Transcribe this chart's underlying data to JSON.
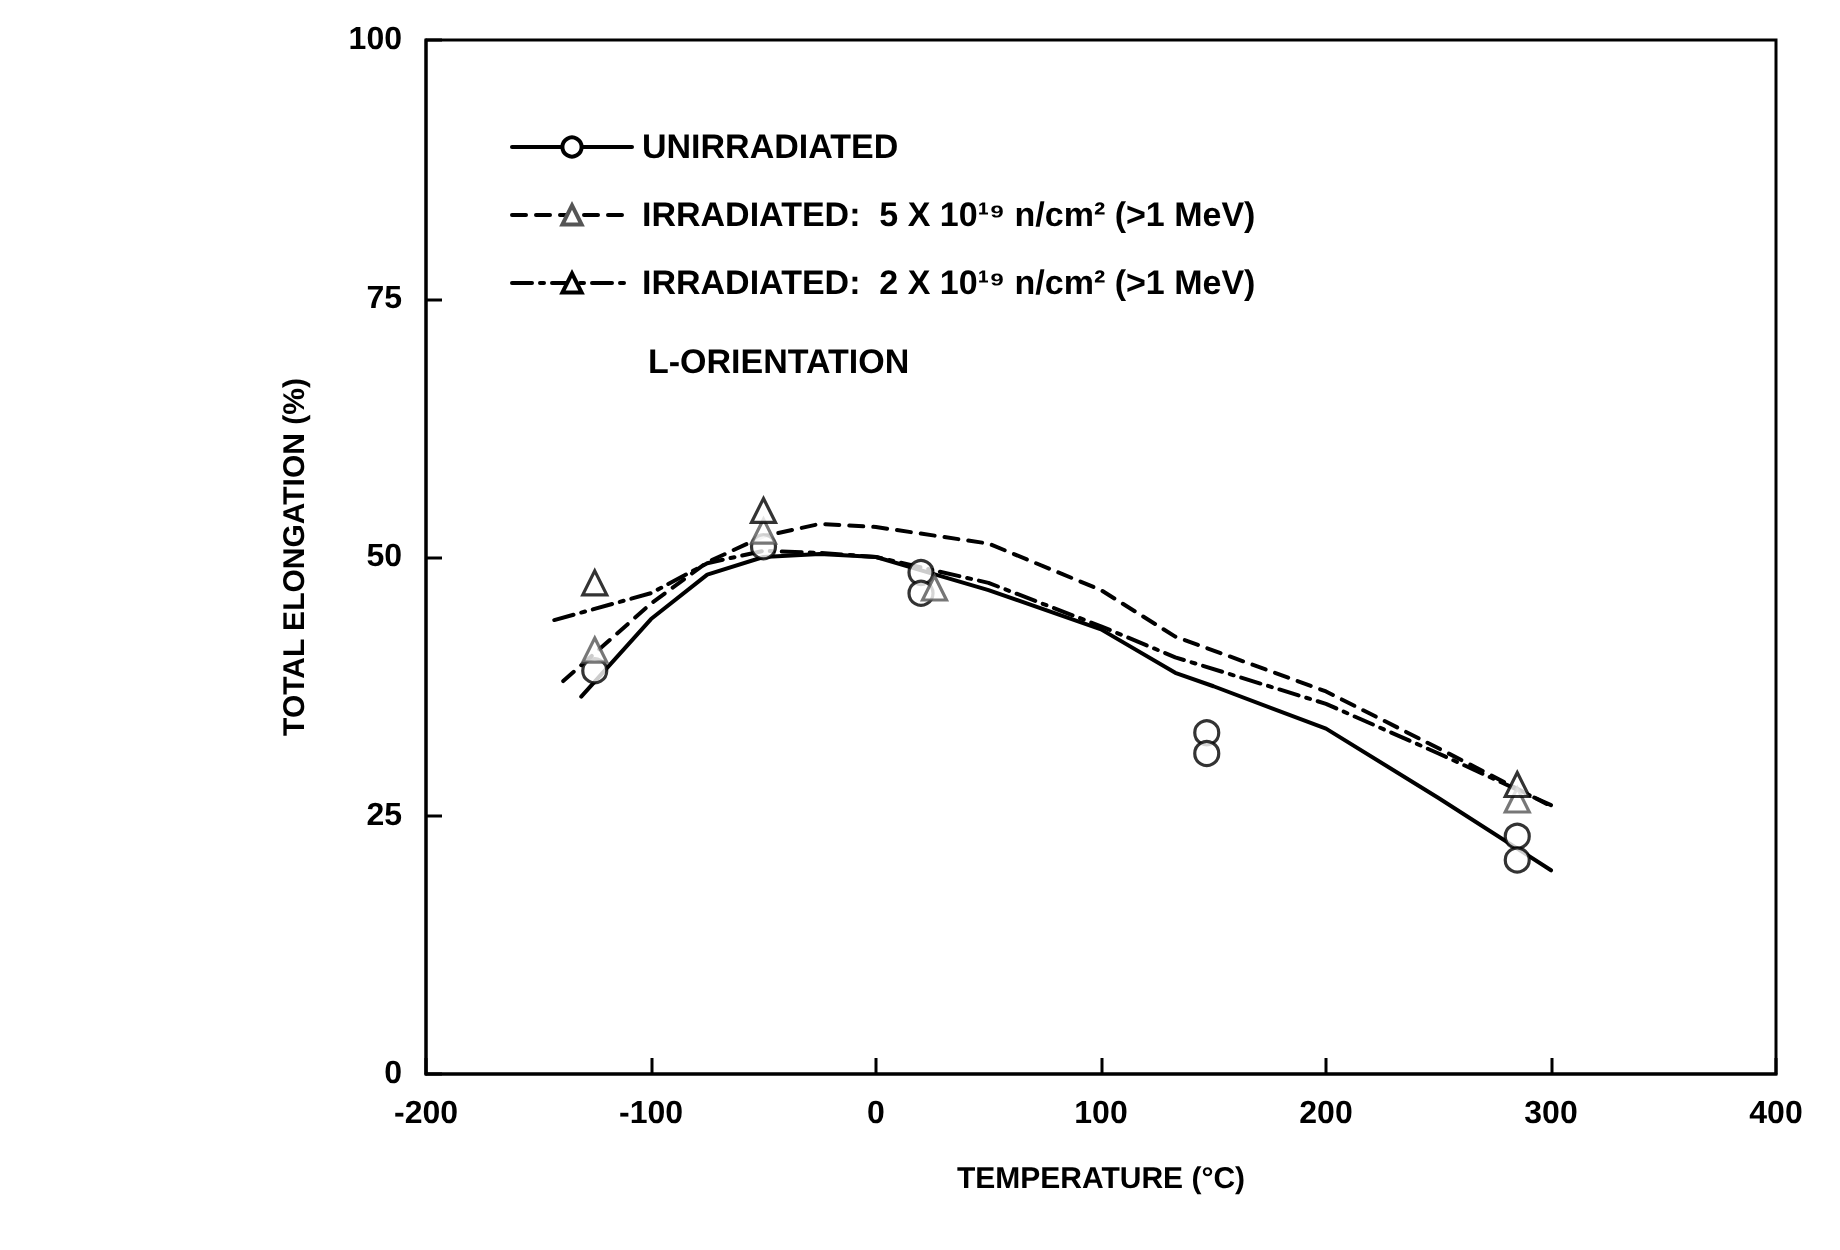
{
  "chart_data": {
    "type": "scatter",
    "xlabel": "TEMPERATURE (°C)",
    "ylabel": "TOTAL ELONGATION (%)",
    "xlim": [
      -200,
      400
    ],
    "xticks": [
      -200,
      -100,
      0,
      100,
      200,
      300,
      400
    ],
    "ylim": [
      0,
      100
    ],
    "yticks": [
      0,
      25,
      50,
      75,
      100
    ],
    "grid": false,
    "legend": "top left",
    "annotations": [
      "L-ORIENTATION"
    ],
    "series": [
      {
        "type": "scatter",
        "color": "#000000",
        "marker": "circle",
        "x": [
          -125,
          -50,
          20,
          20,
          147,
          147,
          285,
          285
        ],
        "values": [
          39,
          51,
          48.5,
          46.5,
          33,
          31,
          23,
          20.7
        ]
      },
      {
        "type": "scatter",
        "color": "#555555",
        "marker": "triangle",
        "x": [
          -125,
          -50,
          26,
          285
        ],
        "values": [
          41,
          52.5,
          47,
          26.5
        ]
      },
      {
        "type": "scatter",
        "color": "#000000",
        "marker": "triangle",
        "x": [
          -125,
          -50,
          285
        ],
        "values": [
          47.5,
          54.5,
          28
        ]
      },
      {
        "type": "line",
        "name": "UNIRRADIATED",
        "color": "#000000",
        "line_style": "solid",
        "marker": "none",
        "x": [
          -131,
          -100,
          -75,
          -50,
          -25,
          0,
          25,
          50,
          100,
          133,
          150,
          200,
          250,
          300
        ],
        "values": [
          36.5,
          44,
          48.3,
          50,
          50.3,
          50,
          48.4,
          46.8,
          43,
          38.8,
          37.5,
          33.4,
          26.7,
          19.7
        ]
      },
      {
        "type": "line",
        "name": "IRRADIATED:  5 X 10¹⁹ n/cm² (>1 MeV)",
        "color": "#000000",
        "line_style": "dashed",
        "marker": "none",
        "x": [
          -139,
          -100,
          -75,
          -50,
          -25,
          0,
          50,
          100,
          133,
          200,
          250,
          300
        ],
        "values": [
          38,
          45.5,
          49.5,
          52,
          53.2,
          52.9,
          51.3,
          46.8,
          42.3,
          37,
          31.5,
          25.9
        ]
      },
      {
        "type": "line",
        "name": "IRRADIATED:  2 X 10¹⁹ n/cm² (>1 MeV)",
        "color": "#000000",
        "line_style": "dashdot",
        "marker": "none",
        "x": [
          -143,
          -100,
          -75,
          -50,
          -25,
          0,
          50,
          100,
          133,
          200,
          250,
          300
        ],
        "values": [
          43.9,
          46.5,
          49.4,
          50.6,
          50.4,
          50,
          47.5,
          43.3,
          40.3,
          35.8,
          31,
          26
        ]
      }
    ]
  }
}
